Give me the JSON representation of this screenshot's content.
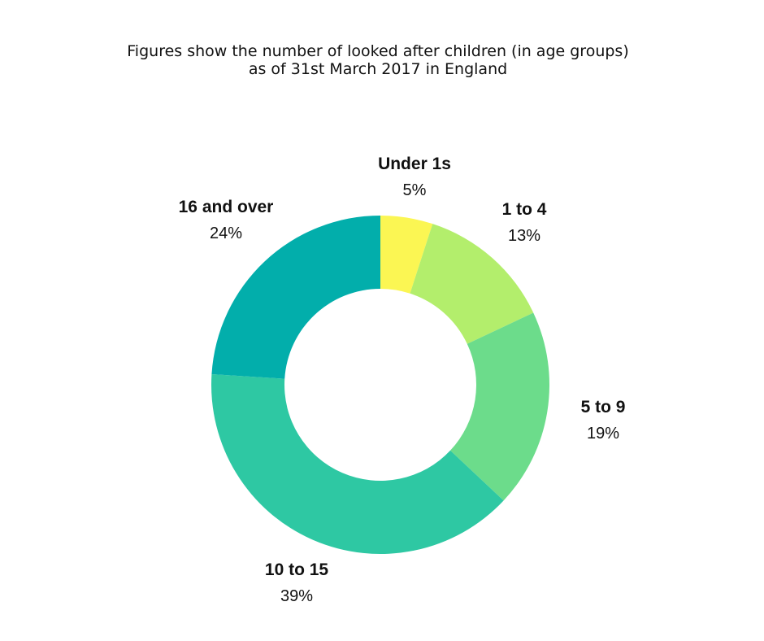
{
  "chart_data": {
    "type": "pie",
    "subtype": "donut",
    "title_lines": [
      "Figures show the number of looked after children (in age groups)",
      "as of 31st March 2017 in England"
    ],
    "categories": [
      "Under 1s",
      "1 to 4",
      "5 to 9",
      "10 to 15",
      "16 and over"
    ],
    "values": [
      5,
      13,
      19,
      39,
      24
    ],
    "value_labels": [
      "5%",
      "13%",
      "19%",
      "39%",
      "24%"
    ],
    "colors": [
      "#fbf653",
      "#b3ee6c",
      "#6cdc8b",
      "#2ec8a3",
      "#02aeab"
    ],
    "legend": "none"
  }
}
